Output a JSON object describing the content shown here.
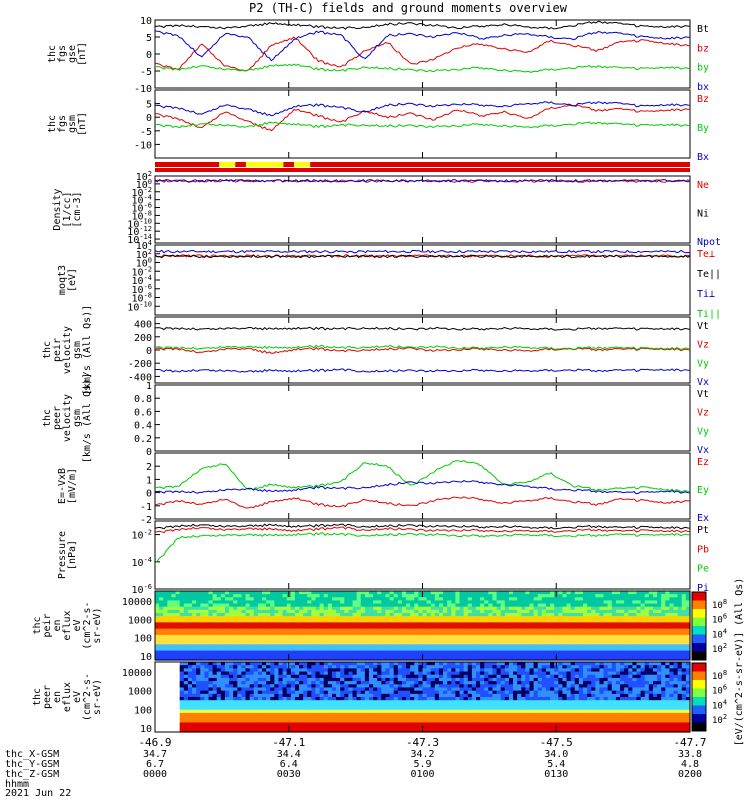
{
  "title": "P2 (TH-C) fields and ground moments overview",
  "date": "2021 Jun 22",
  "colors": {
    "black": "#000000",
    "red": "#e00000",
    "green": "#00cc00",
    "blue": "#0000cc",
    "yellow": "#ffff00",
    "purple": "#800080"
  },
  "chart_data": [
    {
      "id": "fgs-gse",
      "type": "line",
      "ylabel": [
        "thc",
        "fgs",
        "gse",
        "[nT]"
      ],
      "ylim": [
        -10,
        10
      ],
      "yticks": [
        -10,
        -5,
        0,
        5,
        10
      ],
      "series": [
        {
          "name": "Bt",
          "color": "black",
          "values": [
            7.8,
            8.5,
            8.0,
            7.6,
            8.3,
            9.0,
            8.6,
            8.0,
            7.5,
            7.9,
            8.8,
            9.1,
            8.4,
            7.8,
            8.2,
            8.7,
            8.0,
            7.6,
            8.4,
            9.5,
            8.9,
            8.1,
            7.9,
            8.3
          ]
        },
        {
          "name": "bz",
          "color": "red",
          "values": [
            -3.0,
            -4.5,
            3.0,
            -3.5,
            -5.0,
            2.5,
            5.0,
            -2.0,
            -4.0,
            1.0,
            3.5,
            -3.0,
            -1.5,
            2.0,
            3.0,
            1.5,
            0.5,
            4.0,
            2.5,
            1.0,
            3.5,
            4.0,
            3.0,
            2.5
          ]
        },
        {
          "name": "by",
          "color": "green",
          "values": [
            -4.0,
            -4.5,
            -3.5,
            -4.5,
            -4.8,
            -3.5,
            -3.0,
            -4.5,
            -5.0,
            -3.8,
            -4.2,
            -4.6,
            -5.0,
            -4.4,
            -4.0,
            -4.8,
            -5.2,
            -4.5,
            -4.0,
            -3.6,
            -4.1,
            -4.3,
            -4.0,
            -4.2
          ]
        },
        {
          "name": "bx",
          "color": "blue",
          "values": [
            6.5,
            5.5,
            -1.0,
            6.0,
            5.0,
            -2.0,
            4.5,
            6.5,
            5.5,
            -1.5,
            5.5,
            6.0,
            5.0,
            6.5,
            4.5,
            5.5,
            6.0,
            5.0,
            4.5,
            6.5,
            6.0,
            5.0,
            4.5,
            5.0
          ]
        }
      ]
    },
    {
      "id": "fgs-gsm",
      "type": "line",
      "ylabel": [
        "thc",
        "fgs",
        "gsm",
        "[nT]"
      ],
      "ylim": [
        -15,
        10
      ],
      "yticks": [
        -10,
        -5,
        0,
        5
      ],
      "series": [
        {
          "name": "Bz",
          "color": "red",
          "values": [
            1.0,
            -0.5,
            -4.0,
            2.0,
            -1.5,
            -5.0,
            3.0,
            0.5,
            -2.0,
            2.5,
            0.0,
            1.5,
            -1.0,
            3.0,
            0.5,
            2.0,
            -0.5,
            3.5,
            4.5,
            2.5,
            3.0,
            2.0,
            2.5,
            3.0
          ]
        },
        {
          "name": "By",
          "color": "green",
          "values": [
            -3.0,
            -3.5,
            -2.5,
            -3.0,
            -3.5,
            -2.0,
            -2.5,
            -3.5,
            -3.0,
            -2.8,
            -3.2,
            -3.0,
            -3.5,
            -3.0,
            -2.6,
            -3.2,
            -3.6,
            -3.0,
            -2.5,
            -2.0,
            -2.6,
            -3.0,
            -2.8,
            -3.0
          ]
        },
        {
          "name": "Bx",
          "color": "blue",
          "values": [
            4.0,
            3.5,
            1.0,
            4.5,
            3.0,
            0.5,
            4.0,
            4.5,
            3.5,
            2.0,
            4.5,
            5.0,
            4.0,
            5.0,
            4.5,
            4.0,
            5.0,
            5.5,
            4.5,
            5.5,
            5.0,
            4.0,
            4.5,
            4.5
          ]
        }
      ]
    },
    {
      "id": "density",
      "type": "line",
      "ylabel": [
        "Density",
        "[1/cc]",
        "[cm-3]"
      ],
      "ylog": true,
      "ylim_exp": [
        -15,
        2
      ],
      "yticks": [
        "10^2",
        "10^0",
        "10^-2",
        "10^-4",
        "10^-6",
        "10^-8",
        "10^-10",
        "10^-12",
        "10^-14"
      ],
      "series": [
        {
          "name": "Ne",
          "color": "red",
          "values_log10": [
            0.7,
            0.7,
            0.7,
            0.7,
            0.7,
            0.7
          ]
        },
        {
          "name": "Ni",
          "color": "black",
          "values_log10": []
        },
        {
          "name": "Npot",
          "color": "blue",
          "values_log10": [
            0.8,
            0.8,
            0.8,
            0.8,
            0.8,
            0.8
          ]
        }
      ]
    },
    {
      "id": "temperature",
      "type": "line",
      "ylabel": [
        "moqt3",
        "[eV]"
      ],
      "ylog": true,
      "ylim_exp": [
        -12,
        4
      ],
      "yticks": [
        "10^4",
        "10^2",
        "10^0",
        "10^-2",
        "10^-4",
        "10^-6",
        "10^-8",
        "10^-10"
      ],
      "series": [
        {
          "name": "Te⊥",
          "color": "red",
          "values_log10": [
            1.5,
            1.5,
            1.5,
            1.5
          ]
        },
        {
          "name": "Te||",
          "color": "black",
          "values_log10": [
            1.4,
            1.4,
            1.4,
            1.4
          ]
        },
        {
          "name": "Ti⊥",
          "color": "blue",
          "values_log10": [
            2.5,
            2.5,
            2.5
          ]
        },
        {
          "name": "Ti||",
          "color": "green",
          "values_log10": []
        }
      ]
    },
    {
      "id": "peir-velocity",
      "type": "line",
      "ylabel": [
        "thc",
        "peir",
        "velocity",
        "gsm",
        "[km/s (All Qs)]"
      ],
      "ylim": [
        -500,
        500
      ],
      "yticks": [
        -400,
        -200,
        0,
        200,
        400
      ],
      "series": [
        {
          "name": "Vt",
          "color": "black",
          "values": [
            320,
            330,
            315,
            325,
            335,
            320,
            330,
            325,
            318,
            335,
            328,
            320,
            330,
            322,
            318,
            330,
            325,
            320,
            315,
            328,
            322,
            320,
            318,
            320
          ]
        },
        {
          "name": "Vz",
          "color": "red",
          "values": [
            10,
            20,
            -40,
            15,
            25,
            -50,
            10,
            20,
            -20,
            5,
            15,
            30,
            -10,
            10,
            20,
            0,
            -10,
            15,
            20,
            5,
            10,
            15,
            10,
            5
          ]
        },
        {
          "name": "Vy",
          "color": "green",
          "values": [
            30,
            40,
            20,
            45,
            50,
            35,
            40,
            55,
            30,
            45,
            60,
            40,
            50,
            35,
            30,
            45,
            40,
            30,
            25,
            35,
            30,
            25,
            20,
            25
          ]
        },
        {
          "name": "Vx",
          "color": "blue",
          "values": [
            -310,
            -320,
            -305,
            -315,
            -325,
            -310,
            -318,
            -312,
            -300,
            -322,
            -315,
            -308,
            -318,
            -310,
            -305,
            -318,
            -312,
            -306,
            -302,
            -315,
            -310,
            -305,
            -302,
            -305
          ]
        }
      ]
    },
    {
      "id": "peer-velocity",
      "type": "line",
      "ylabel": [
        "thc",
        "peer",
        "velocity",
        "gsm",
        "[km/s (All Qs)]"
      ],
      "ylim": [
        0,
        1
      ],
      "yticks": [
        0.0,
        0.2,
        0.4,
        0.6,
        0.8,
        1.0
      ],
      "series": [
        {
          "name": "Vt",
          "color": "black",
          "values": []
        },
        {
          "name": "Vz",
          "color": "red",
          "values": []
        },
        {
          "name": "Vy",
          "color": "green",
          "values": []
        },
        {
          "name": "Vx",
          "color": "blue",
          "values": []
        }
      ]
    },
    {
      "id": "efield",
      "type": "line",
      "ylabel": [
        "E=-VxB",
        "[mV/m]"
      ],
      "ylim": [
        -2,
        3
      ],
      "yticks": [
        -2,
        -1,
        0,
        1,
        2
      ],
      "series": [
        {
          "name": "Ez",
          "color": "red",
          "values": [
            -1.0,
            -0.6,
            -0.9,
            -0.5,
            -1.2,
            -0.7,
            -0.4,
            -0.9,
            -1.1,
            -0.5,
            -0.8,
            -1.0,
            -0.6,
            -0.3,
            -0.5,
            -0.8,
            -0.6,
            -0.4,
            -0.7,
            -0.9,
            -0.5,
            -0.6,
            -0.8,
            -0.6
          ]
        },
        {
          "name": "Ey",
          "color": "green",
          "values": [
            0.3,
            0.5,
            1.8,
            2.2,
            0.2,
            0.6,
            0.4,
            0.5,
            0.8,
            2.3,
            2.0,
            0.5,
            1.6,
            2.5,
            2.1,
            0.6,
            0.8,
            1.5,
            0.5,
            0.2,
            0.3,
            0.4,
            0.2,
            0.1
          ]
        },
        {
          "name": "Ex",
          "color": "blue",
          "values": [
            0.0,
            0.1,
            0.0,
            0.2,
            0.3,
            0.1,
            0.2,
            0.4,
            0.3,
            0.4,
            0.6,
            0.8,
            0.7,
            0.9,
            0.8,
            0.6,
            0.5,
            0.3,
            0.2,
            0.1,
            0.0,
            0.0,
            0.1,
            0.0
          ]
        }
      ]
    },
    {
      "id": "pressure",
      "type": "line",
      "ylabel": [
        "Pressure",
        "[nPa]"
      ],
      "ylog": true,
      "ylim_exp": [
        -6,
        -1
      ],
      "yticks": [
        "10^-2",
        "10^-4",
        "10^-6"
      ],
      "series": [
        {
          "name": "Pt",
          "color": "black",
          "values_log10": [
            -1.6,
            -1.35,
            -1.3,
            -1.4,
            -1.35,
            -1.3,
            -1.4,
            -1.35,
            -1.3,
            -1.4,
            -1.35,
            -1.3,
            -1.4,
            -1.35,
            -1.45,
            -1.4,
            -1.45,
            -1.5,
            -1.45,
            -1.4,
            -1.5,
            -1.45,
            -1.5,
            -1.5
          ]
        },
        {
          "name": "Pb",
          "color": "red",
          "values_log10": [
            -1.9,
            -1.6,
            -1.5,
            -1.65,
            -1.55,
            -1.6,
            -1.7,
            -1.6,
            -1.5,
            -1.65,
            -1.55,
            -1.6,
            -1.7,
            -1.65,
            -1.7,
            -1.75,
            -1.7,
            -1.75,
            -1.7,
            -1.65,
            -1.75,
            -1.7,
            -1.75,
            -1.75
          ]
        },
        {
          "name": "Pe",
          "color": "green",
          "values_log10": [
            -4.2,
            -2.2,
            -2.1,
            -2.05,
            -2.0,
            -2.05,
            -2.0,
            -1.95,
            -2.0,
            -2.05,
            -2.0,
            -1.95,
            -2.0,
            -2.05,
            -2.1,
            -2.05,
            -2.0,
            -2.05,
            -2.1,
            -2.05,
            -2.0,
            -2.05,
            -2.0,
            -2.0
          ]
        },
        {
          "name": "Pi",
          "color": "blue",
          "values_log10": []
        }
      ]
    },
    {
      "id": "peir-spectrogram",
      "type": "heatmap",
      "ylabel": [
        "thc",
        "peir",
        "en",
        "eflux",
        "eV",
        "(cm^2-s-",
        "sr-eV)"
      ],
      "ylog": true,
      "yticks": [
        "10000",
        "1000",
        "100",
        "10"
      ]
    },
    {
      "id": "peer-spectrogram",
      "type": "heatmap",
      "ylabel": [
        "thc",
        "peer",
        "en",
        "eflux",
        "eV",
        "(cm^2-s-",
        "sr-eV)"
      ],
      "ylog": true,
      "yticks": [
        "10000",
        "1000",
        "100",
        "10"
      ]
    }
  ],
  "colorbar": {
    "label": "[eV/(cm^2-s-sr-eV)] (All Qs)",
    "ticks_a": [
      "10^8",
      "10^6",
      "10^4",
      "10^2"
    ],
    "ticks_b": [
      "10^8",
      "10^6",
      "10^4",
      "10^2"
    ]
  },
  "xaxis": {
    "tick_labels": [
      "-46.9",
      "-47.1",
      "-47.3",
      "-47.5",
      "-47.7"
    ],
    "rows": [
      {
        "label": "thc_X-GSM",
        "values": [
          "34.7",
          "34.4",
          "34.2",
          "34.0",
          "33.8"
        ]
      },
      {
        "label": "thc_Y-GSM",
        "values": [
          "6.7",
          "6.4",
          "5.9",
          "5.4",
          "4.8"
        ]
      },
      {
        "label": "thc_Z-GSM",
        "values": [
          "0000",
          "0030",
          "0100",
          "0130",
          "0200"
        ]
      },
      {
        "label": "hhmm",
        "values": []
      }
    ]
  },
  "status_bar": {
    "colors": [
      "red",
      "yellow",
      "red",
      "yellow",
      "red",
      "yellow",
      "red"
    ]
  }
}
